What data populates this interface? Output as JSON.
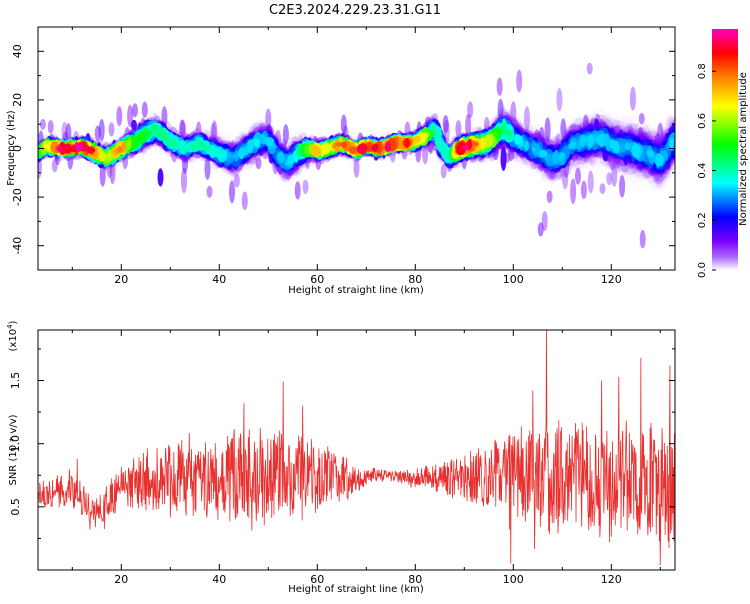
{
  "chart_data": [
    {
      "type": "heatmap",
      "title": "C2E3.2024.229.23.31.G11",
      "xlabel": "Height of straight line (km)",
      "ylabel": "Frequency (Hz)",
      "xlim": [
        3,
        133
      ],
      "ylim": [
        -50,
        50
      ],
      "xticks": [
        20,
        40,
        60,
        80,
        100,
        120
      ],
      "yticks": [
        -40,
        -20,
        0,
        20,
        40
      ],
      "colorbar": {
        "label": "Normalized spectral amplitude",
        "range": [
          0,
          0.97
        ],
        "ticks": [
          "0.0",
          "0.2",
          "0.4",
          "0.6",
          "0.8"
        ],
        "colormap": [
          "#ffffff",
          "#7b00ff",
          "#0000ff",
          "#00ffff",
          "#00ff00",
          "#ffff00",
          "#ff8000",
          "#ff0000",
          "#ff00c0"
        ]
      },
      "ridge": {
        "x": [
          3,
          5,
          8,
          10,
          12,
          15,
          17,
          20,
          23,
          25,
          27,
          30,
          33,
          36,
          40,
          43,
          46,
          48,
          50,
          52,
          54,
          56,
          58,
          60,
          62,
          65,
          68,
          70,
          73,
          76,
          78,
          80,
          82,
          84,
          85,
          87,
          89,
          91,
          94,
          96,
          98,
          100,
          102,
          104,
          106,
          108,
          110,
          112,
          115,
          118,
          121,
          124,
          127,
          130,
          133
        ],
        "freq": [
          -2,
          1,
          0,
          0,
          1,
          -2,
          -4,
          0,
          3,
          6,
          8,
          3,
          0,
          2,
          -2,
          -4,
          0,
          3,
          4,
          -3,
          -6,
          -2,
          0,
          -1,
          0,
          2,
          -1,
          1,
          0,
          2,
          2,
          3,
          5,
          8,
          2,
          -4,
          0,
          1,
          2,
          4,
          8,
          5,
          2,
          0,
          -2,
          -5,
          -3,
          2,
          3,
          4,
          1,
          0,
          -2,
          -5,
          4
        ],
        "spread": [
          3,
          3,
          3,
          3,
          3,
          4,
          4,
          4,
          5,
          6,
          6,
          5,
          5,
          5,
          6,
          7,
          7,
          7,
          6,
          7,
          8,
          7,
          5,
          4,
          4,
          3,
          3,
          3,
          3,
          3,
          3,
          3,
          4,
          5,
          5,
          5,
          5,
          5,
          6,
          7,
          8,
          8,
          7,
          8,
          8,
          9,
          9,
          9,
          10,
          10,
          10,
          11,
          11,
          11,
          11
        ],
        "peak_amp": [
          0.45,
          0.7,
          0.9,
          0.9,
          0.95,
          0.7,
          0.6,
          0.75,
          0.45,
          0.45,
          0.4,
          0.4,
          0.35,
          0.4,
          0.35,
          0.3,
          0.3,
          0.35,
          0.3,
          0.3,
          0.3,
          0.35,
          0.5,
          0.7,
          0.6,
          0.8,
          0.85,
          0.85,
          0.85,
          0.8,
          0.8,
          0.75,
          0.6,
          0.45,
          0.35,
          0.4,
          0.85,
          0.9,
          0.6,
          0.55,
          0.45,
          0.35,
          0.3,
          0.3,
          0.3,
          0.3,
          0.3,
          0.3,
          0.3,
          0.3,
          0.3,
          0.3,
          0.3,
          0.3,
          0.3
        ]
      }
    },
    {
      "type": "line",
      "xlabel": "Height of straight line (km)",
      "ylabel": "SNR (10 * v/v)",
      "y_multiplier": "(x10",
      "y_multiplier_exp": "4",
      "y_multiplier_close": ")",
      "xlim": [
        3,
        133
      ],
      "ylim": [
        0,
        1.9
      ],
      "xticks": [
        20,
        40,
        60,
        80,
        100,
        120
      ],
      "yticks": [
        0.5,
        1.0,
        1.5
      ],
      "ytick_labels": [
        "0.5",
        "1.0",
        "1.5"
      ],
      "color": "#e8302f",
      "envelope": {
        "x": [
          3,
          6,
          9,
          12,
          15,
          17,
          20,
          23,
          26,
          30,
          35,
          40,
          45,
          50,
          55,
          60,
          64,
          68,
          72,
          76,
          80,
          84,
          88,
          92,
          96,
          100,
          104,
          108,
          112,
          116,
          120,
          125,
          130,
          133
        ],
        "mean": [
          0.62,
          0.6,
          0.65,
          0.55,
          0.45,
          0.5,
          0.66,
          0.7,
          0.7,
          0.72,
          0.72,
          0.72,
          0.75,
          0.76,
          0.75,
          0.73,
          0.72,
          0.72,
          0.76,
          0.74,
          0.73,
          0.72,
          0.73,
          0.73,
          0.75,
          0.75,
          0.74,
          0.73,
          0.74,
          0.72,
          0.7,
          0.7,
          0.68,
          0.68
        ],
        "amp": [
          0.12,
          0.14,
          0.2,
          0.16,
          0.14,
          0.18,
          0.2,
          0.24,
          0.28,
          0.3,
          0.33,
          0.36,
          0.4,
          0.42,
          0.4,
          0.34,
          0.24,
          0.12,
          0.06,
          0.06,
          0.08,
          0.12,
          0.18,
          0.24,
          0.32,
          0.4,
          0.46,
          0.5,
          0.52,
          0.55,
          0.55,
          0.55,
          0.55,
          0.55
        ]
      },
      "spikes": [
        {
          "x": 106.8,
          "y": 1.92
        },
        {
          "x": 53.0,
          "y": 1.49
        },
        {
          "x": 57.0,
          "y": 1.3
        },
        {
          "x": 104.0,
          "y": 1.42
        },
        {
          "x": 126.0,
          "y": 1.68
        },
        {
          "x": 132.0,
          "y": 1.62
        },
        {
          "x": 118.0,
          "y": 1.5
        },
        {
          "x": 121.5,
          "y": 1.53
        },
        {
          "x": 11.0,
          "y": 0.88
        },
        {
          "x": 99.5,
          "y": 0.05
        },
        {
          "x": 130.0,
          "y": 0.04
        },
        {
          "x": 45.0,
          "y": 1.32
        }
      ]
    }
  ]
}
